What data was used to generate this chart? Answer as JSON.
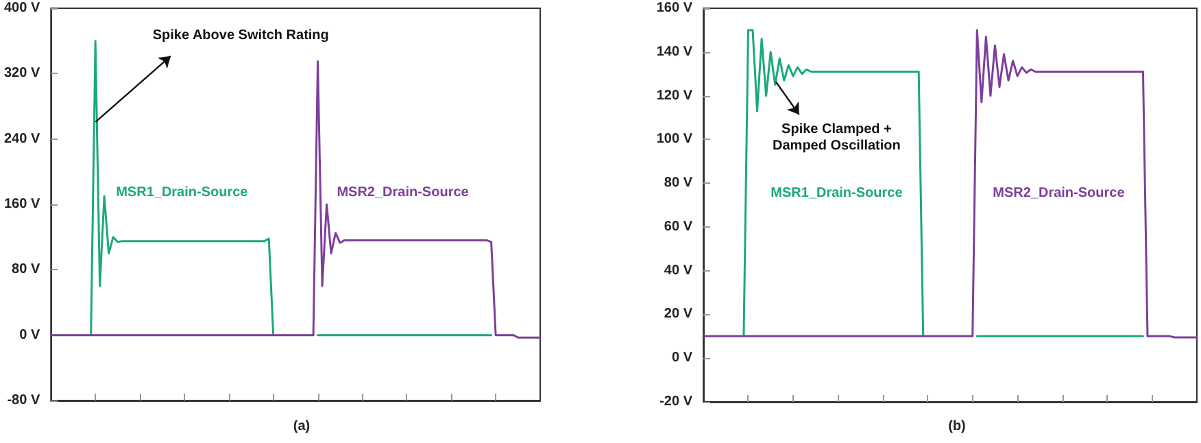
{
  "chart_data": [
    {
      "type": "line",
      "title": "(a)",
      "tick_labels": "y",
      "legend": false,
      "grid": false,
      "line_style": "solid",
      "categories": [
        null,
        null,
        null,
        null,
        null,
        null,
        null,
        null,
        null,
        null,
        null,
        null,
        null,
        null,
        null,
        null,
        null,
        null,
        null,
        null,
        null,
        null,
        null,
        null,
        null,
        null,
        null,
        null,
        null,
        null,
        null,
        null,
        null,
        null,
        null,
        null,
        null,
        null,
        null,
        null,
        null,
        null,
        null,
        null,
        null,
        null,
        null,
        null,
        null,
        null,
        null,
        null,
        null,
        null,
        null,
        null,
        null,
        null,
        null,
        null,
        null,
        null,
        null,
        null,
        null,
        null,
        null,
        null,
        null,
        null,
        null,
        null,
        null,
        null,
        null,
        null,
        null,
        null,
        null,
        null,
        null,
        null,
        null,
        null,
        null,
        null,
        null,
        null,
        null,
        null,
        null,
        null,
        null,
        null,
        null,
        null,
        null,
        null,
        null,
        null,
        null,
        null,
        null,
        null,
        null,
        null,
        null,
        null,
        null,
        null,
        null
      ],
      "ylim": [
        -80,
        400
      ],
      "yticks": [
        {
          "value": -80,
          "label": "-80 V"
        },
        {
          "value": 0,
          "label": "0 V"
        },
        {
          "value": 80,
          "label": "80 V"
        },
        {
          "value": 160,
          "label": "160 V"
        },
        {
          "value": 240,
          "label": "240 V"
        },
        {
          "value": 320,
          "label": "320 V"
        },
        {
          "value": 400,
          "label": "400 V"
        }
      ],
      "annotations": [
        "Spike Above Switch Rating"
      ],
      "series": [
        {
          "name": "MSR1_Drain-Source",
          "color": "#1ba97a",
          "values": [
            null,
            null,
            null,
            null,
            null,
            null,
            null,
            null,
            null,
            0,
            360,
            60,
            170,
            100,
            120,
            114,
            115,
            115,
            115,
            115,
            115,
            115,
            115,
            115,
            115,
            115,
            115,
            115,
            115,
            115,
            115,
            115,
            115,
            115,
            115,
            115,
            115,
            115,
            115,
            115,
            115,
            115,
            115,
            115,
            115,
            115,
            115,
            115,
            115,
            118,
            0,
            null,
            null,
            null,
            null,
            null,
            null,
            null,
            null,
            null,
            0,
            0,
            0,
            0,
            0,
            0,
            0,
            0,
            0,
            0,
            0,
            0,
            0,
            0,
            0,
            0,
            0,
            0,
            0,
            0,
            0,
            0,
            0,
            0,
            0,
            0,
            0,
            0,
            0,
            0,
            0,
            0,
            0,
            0,
            0,
            0,
            0,
            0,
            0,
            0,
            null,
            null,
            null,
            null,
            null,
            null,
            null,
            null,
            null,
            null,
            null
          ]
        },
        {
          "name": "MSR2_Drain-Source",
          "color": "#7d3f9b",
          "values": [
            0,
            0,
            0,
            0,
            0,
            0,
            0,
            0,
            0,
            0,
            0,
            0,
            0,
            0,
            0,
            0,
            0,
            0,
            0,
            0,
            0,
            0,
            0,
            0,
            0,
            0,
            0,
            0,
            0,
            0,
            0,
            0,
            0,
            0,
            0,
            0,
            0,
            0,
            0,
            0,
            0,
            0,
            0,
            0,
            0,
            0,
            0,
            0,
            0,
            0,
            0,
            0,
            0,
            0,
            0,
            0,
            0,
            0,
            0,
            0,
            335,
            60,
            160,
            100,
            125,
            113,
            116,
            116,
            116,
            116,
            116,
            116,
            116,
            116,
            116,
            116,
            116,
            116,
            116,
            116,
            116,
            116,
            116,
            116,
            116,
            116,
            116,
            116,
            116,
            116,
            116,
            116,
            116,
            116,
            116,
            116,
            116,
            116,
            116,
            114,
            0,
            0,
            0,
            0,
            0,
            -3,
            -3,
            -3,
            -3,
            -3,
            -3
          ]
        }
      ]
    },
    {
      "type": "line",
      "title": "(b)",
      "tick_labels": "y",
      "legend": false,
      "grid": false,
      "line_style": "solid",
      "categories": [
        null,
        null,
        null,
        null,
        null,
        null,
        null,
        null,
        null,
        null,
        null,
        null,
        null,
        null,
        null,
        null,
        null,
        null,
        null,
        null,
        null,
        null,
        null,
        null,
        null,
        null,
        null,
        null,
        null,
        null,
        null,
        null,
        null,
        null,
        null,
        null,
        null,
        null,
        null,
        null,
        null,
        null,
        null,
        null,
        null,
        null,
        null,
        null,
        null,
        null,
        null,
        null,
        null,
        null,
        null,
        null,
        null,
        null,
        null,
        null,
        null,
        null,
        null,
        null,
        null,
        null,
        null,
        null,
        null,
        null,
        null,
        null,
        null,
        null,
        null,
        null,
        null,
        null,
        null,
        null,
        null,
        null,
        null,
        null,
        null,
        null,
        null,
        null,
        null,
        null,
        null,
        null,
        null,
        null,
        null,
        null,
        null,
        null,
        null,
        null,
        null,
        null,
        null,
        null,
        null,
        null,
        null,
        null,
        null,
        null,
        null
      ],
      "ylim": [
        -20,
        160
      ],
      "yticks": [
        {
          "value": -20,
          "label": "-20 V"
        },
        {
          "value": 0,
          "label": "0 V"
        },
        {
          "value": 20,
          "label": "20 V"
        },
        {
          "value": 40,
          "label": "40 V"
        },
        {
          "value": 60,
          "label": "60 V"
        },
        {
          "value": 80,
          "label": "80 V"
        },
        {
          "value": 100,
          "label": "100 V"
        },
        {
          "value": 120,
          "label": "120 V"
        },
        {
          "value": 140,
          "label": "140 V"
        },
        {
          "value": 160,
          "label": "160 V"
        }
      ],
      "annotations": [
        "Spike Clamped +\nDamped Oscillation"
      ],
      "series": [
        {
          "name": "MSR1_Drain-Source",
          "color": "#1ba97a",
          "values": [
            null,
            null,
            null,
            null,
            null,
            null,
            null,
            null,
            null,
            10,
            150,
            150,
            113,
            146,
            120,
            140,
            125,
            137,
            127,
            134,
            129,
            133,
            130,
            132,
            131,
            131,
            131,
            131,
            131,
            131,
            131,
            131,
            131,
            131,
            131,
            131,
            131,
            131,
            131,
            131,
            131,
            131,
            131,
            131,
            131,
            131,
            131,
            131,
            131,
            10,
            null,
            null,
            null,
            null,
            null,
            null,
            null,
            null,
            null,
            null,
            null,
            10,
            10,
            10,
            10,
            10,
            10,
            10,
            10,
            10,
            10,
            10,
            10,
            10,
            10,
            10,
            10,
            10,
            10,
            10,
            10,
            10,
            10,
            10,
            10,
            10,
            10,
            10,
            10,
            10,
            10,
            10,
            10,
            10,
            10,
            10,
            10,
            10,
            10,
            null,
            null,
            null,
            null,
            null,
            null,
            null,
            null,
            null,
            null,
            null,
            null
          ]
        },
        {
          "name": "MSR2_Drain-Source",
          "color": "#7d3f9b",
          "values": [
            10,
            10,
            10,
            10,
            10,
            10,
            10,
            10,
            10,
            10,
            10,
            10,
            10,
            10,
            10,
            10,
            10,
            10,
            10,
            10,
            10,
            10,
            10,
            10,
            10,
            10,
            10,
            10,
            10,
            10,
            10,
            10,
            10,
            10,
            10,
            10,
            10,
            10,
            10,
            10,
            10,
            10,
            10,
            10,
            10,
            10,
            10,
            10,
            10,
            10,
            10,
            10,
            10,
            10,
            10,
            10,
            10,
            10,
            10,
            10,
            10,
            150,
            117,
            147,
            120,
            143,
            124,
            139,
            127,
            136,
            129,
            133,
            130.5,
            132,
            131,
            131,
            131,
            131,
            131,
            131,
            131,
            131,
            131,
            131,
            131,
            131,
            131,
            131,
            131,
            131,
            131,
            131,
            131,
            131,
            131,
            131,
            131,
            131,
            131,
            10,
            10,
            10,
            10,
            10,
            10,
            9.5,
            9.5,
            9.5,
            9.5,
            9.5,
            9.5
          ]
        }
      ]
    }
  ]
}
